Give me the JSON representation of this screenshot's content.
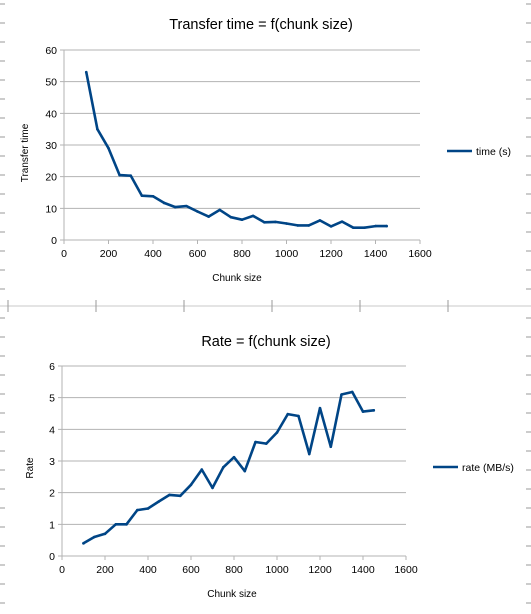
{
  "chart_data": [
    {
      "type": "line",
      "title": "Transfer time = f(chunk size)",
      "xlabel": "Chunk size",
      "ylabel": "Transfer time",
      "xlim": [
        0,
        1600
      ],
      "ylim": [
        0,
        60
      ],
      "xticks": [
        0,
        200,
        400,
        600,
        800,
        1000,
        1200,
        1400,
        1600
      ],
      "yticks": [
        0,
        10,
        20,
        30,
        40,
        50,
        60
      ],
      "grid": true,
      "legend": "right",
      "color": "#004586",
      "series": [
        {
          "name": "time (s)",
          "x": [
            100,
            150,
            200,
            250,
            300,
            350,
            400,
            450,
            500,
            550,
            600,
            650,
            700,
            750,
            800,
            850,
            900,
            950,
            1000,
            1050,
            1100,
            1150,
            1200,
            1250,
            1300,
            1350,
            1400,
            1450
          ],
          "values": [
            53,
            35,
            29,
            20.5,
            20.3,
            14,
            13.8,
            11.7,
            10.4,
            10.7,
            9,
            7.4,
            9.5,
            7.2,
            6.4,
            7.6,
            5.6,
            5.7,
            5.2,
            4.6,
            4.6,
            6.2,
            4.3,
            5.8,
            3.9,
            3.9,
            4.4,
            4.4
          ]
        }
      ]
    },
    {
      "type": "line",
      "title": "Rate = f(chunk size)",
      "xlabel": "Chunk size",
      "ylabel": "Rate",
      "xlim": [
        0,
        1600
      ],
      "ylim": [
        0,
        6
      ],
      "xticks": [
        0,
        200,
        400,
        600,
        800,
        1000,
        1200,
        1400,
        1600
      ],
      "yticks": [
        0,
        1,
        2,
        3,
        4,
        5,
        6
      ],
      "grid": true,
      "legend": "right",
      "color": "#004586",
      "series": [
        {
          "name": "rate (MB/s)",
          "x": [
            100,
            150,
            200,
            250,
            300,
            350,
            400,
            450,
            500,
            550,
            600,
            650,
            700,
            750,
            800,
            850,
            900,
            950,
            1000,
            1050,
            1100,
            1150,
            1200,
            1250,
            1300,
            1350,
            1400,
            1450
          ],
          "values": [
            0.4,
            0.6,
            0.7,
            1.0,
            1.0,
            1.45,
            1.5,
            1.72,
            1.93,
            1.9,
            2.25,
            2.73,
            2.15,
            2.8,
            3.12,
            2.68,
            3.6,
            3.55,
            3.9,
            4.48,
            4.42,
            3.22,
            4.67,
            3.45,
            5.1,
            5.18,
            4.56,
            4.6
          ]
        }
      ]
    }
  ]
}
